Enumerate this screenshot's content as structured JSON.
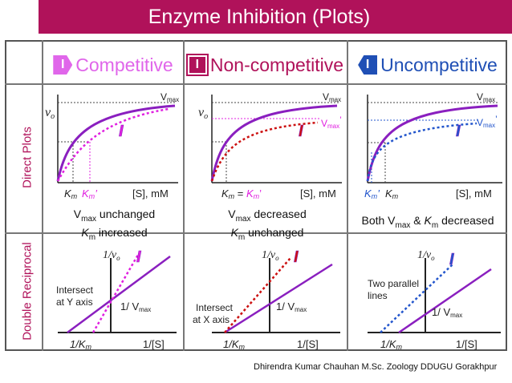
{
  "title": "Enzyme Inhibition (Plots)",
  "columns": [
    {
      "badge": "I",
      "label": "Competitive",
      "color": "#e066ea"
    },
    {
      "badge": "I",
      "label": "Non-competitive",
      "color": "#b0125a"
    },
    {
      "badge": "I",
      "label": "Uncompetitive",
      "color": "#1f4fb5"
    }
  ],
  "rows": {
    "direct": "Direct Plots",
    "reciprocal": "Double Reciprocal"
  },
  "direct": {
    "vo": "v",
    "vo_sub": "o",
    "vmax": "V",
    "vmax_sub": "max",
    "prime": "’",
    "x_axis": "[S], mM",
    "inhibitor": "I",
    "competitive": {
      "km": "K",
      "km_sub": "m",
      "km_prime": "K",
      "km_prime_sub": "m",
      "prime": "’"
    },
    "noncompetitive": {
      "km_label": "K",
      "km_sub": "m",
      "eq": " = ",
      "km_prime": "K",
      "km_prime_sub": "m",
      "prime": "’"
    },
    "uncompetitive": {
      "km_prime": "K",
      "km_prime_sub": "m",
      "prime": "’",
      "km": "K",
      "km_sub": "m"
    }
  },
  "summary": {
    "competitive": {
      "line1_a": "V",
      "line1_sub": "max",
      "line1_b": " unchanged",
      "line2_a": "K",
      "line2_sub": "m",
      "line2_b": " increased"
    },
    "noncompetitive": {
      "line1_a": "V",
      "line1_sub": "max",
      "line1_b": " decreased",
      "line2_a": "K",
      "line2_sub": "m",
      "line2_b": " unchanged"
    },
    "uncompetitive": {
      "a": "Both V",
      "a_sub": "max",
      "b": " & ",
      "c": "K",
      "c_sub": "m",
      "d": " decreased"
    }
  },
  "reciprocal": {
    "y_axis": "1/v",
    "y_sub": "o",
    "x_left": "1/K",
    "x_left_sub": "m",
    "x_right": "1/[S]",
    "intercept": "1/ V",
    "intercept_sub": "max",
    "inhibitor": "I",
    "competitive_note": [
      "Intersect",
      "at Y axis"
    ],
    "noncompetitive_note": [
      "Intersect",
      "at X axis"
    ],
    "uncompetitive_note": [
      "Two parallel",
      "lines"
    ]
  },
  "colors": {
    "purple": "#8a1fbf",
    "magenta": "#e020e0",
    "red": "#cc1111",
    "blue": "#2255cc",
    "dark": "#222222"
  },
  "footer": "Dhirendra Kumar Chauhan M.Sc. Zoology DDUGU Gorakhpur"
}
